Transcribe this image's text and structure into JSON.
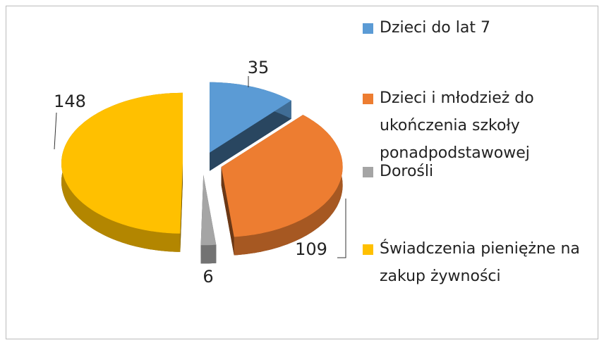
{
  "chart_data": {
    "type": "pie3d",
    "categories": [
      "Dzieci do lat 7",
      "Dzieci i młodzież do ukończenia szkoły ponadpodstawowej",
      "Dorośli",
      "Świadczenia pieniężne na zakup żywności"
    ],
    "values": [
      35,
      109,
      6,
      148
    ],
    "colors": [
      "#5b9bd5",
      "#ed7d31",
      "#a5a5a5",
      "#ffc000"
    ],
    "legend": "right"
  }
}
